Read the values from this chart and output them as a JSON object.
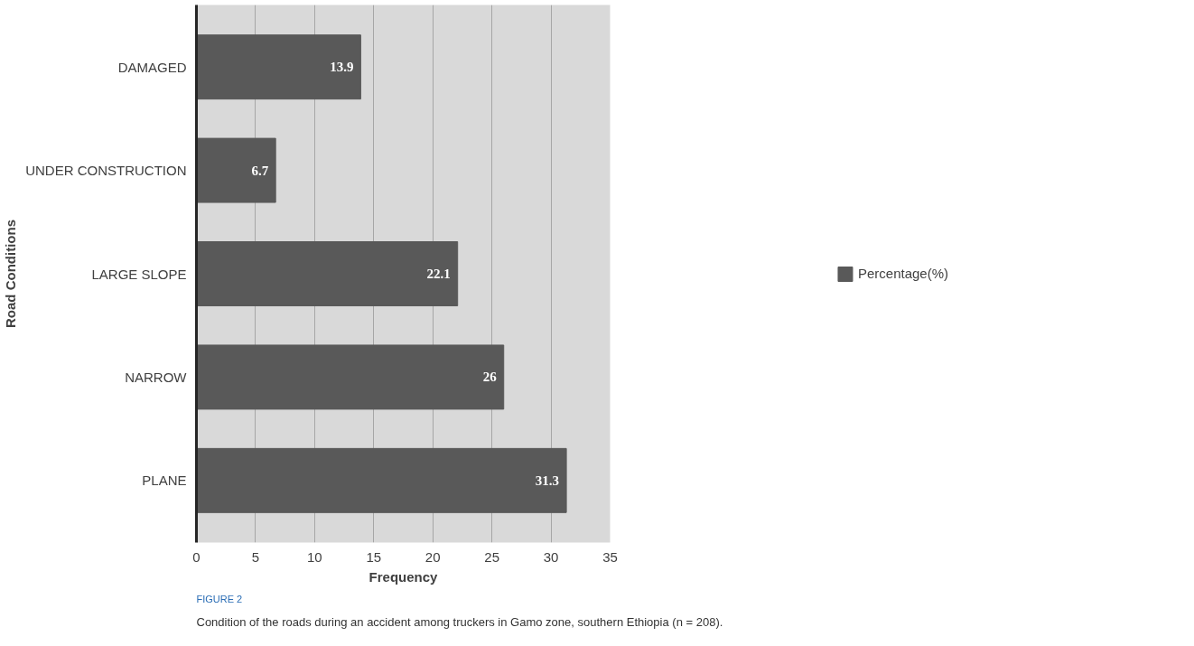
{
  "chart_data": {
    "type": "bar",
    "orientation": "horizontal",
    "xlabel": "Frequency",
    "ylabel": "Road Conditions",
    "categories": [
      "DAMAGED",
      "UNDER CONSTRUCTION",
      "LARGE SLOPE",
      "NARROW",
      "PLANE"
    ],
    "series": [
      {
        "name": "Percentage(%)",
        "color": "#595959",
        "values": [
          13.9,
          6.7,
          22.1,
          26,
          31.3
        ]
      }
    ],
    "xlim": [
      0,
      35
    ],
    "xticks": [
      0,
      5,
      10,
      15,
      20,
      25,
      30,
      35
    ],
    "grid": "x",
    "legend": "right",
    "data_labels": true,
    "annotations": [
      "FIGURE 2",
      "Condition of the roads during an accident among truckers in Gamo zone, southern Ethiopia (n = 208)."
    ]
  }
}
